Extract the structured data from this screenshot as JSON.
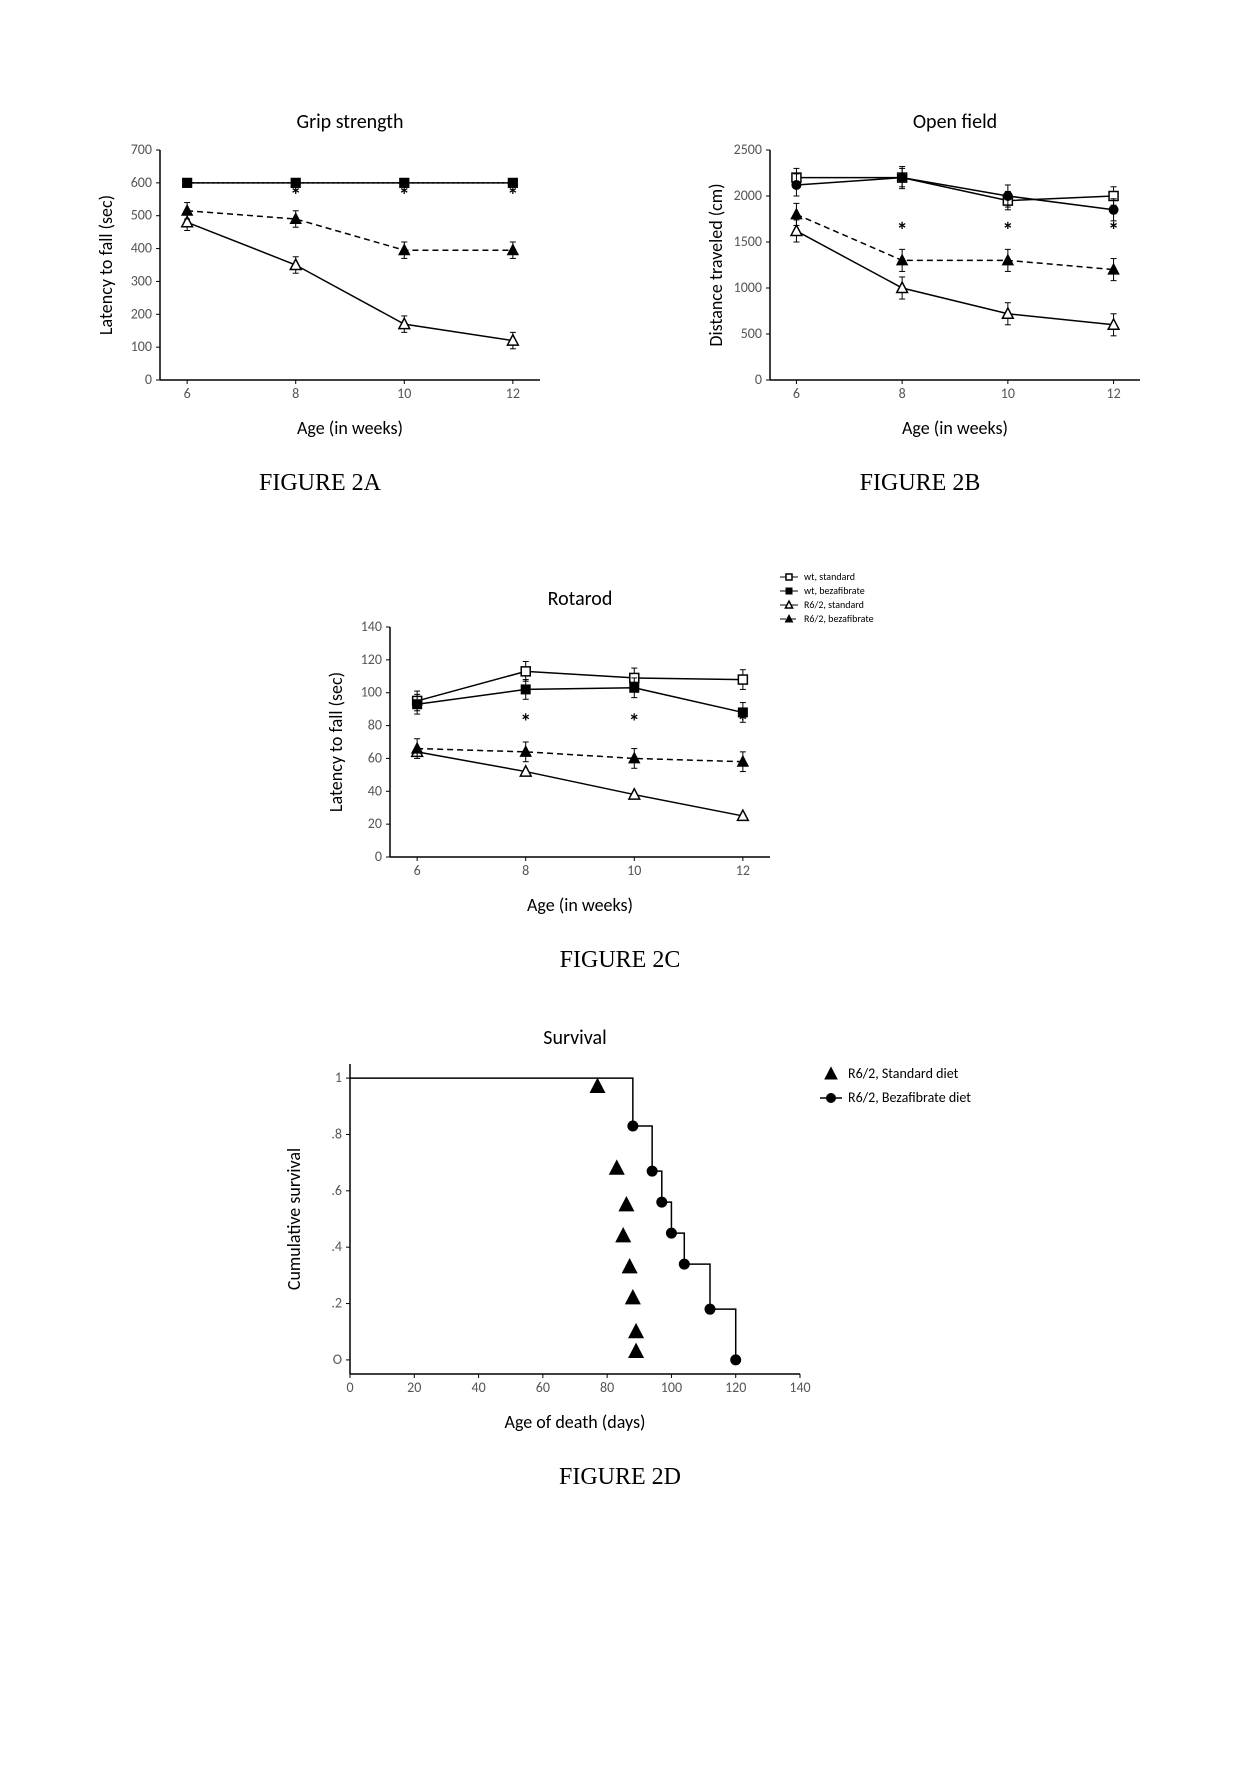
{
  "page": {
    "bg": "#ffffff",
    "captions": {
      "a": "FIGURE 2A",
      "b": "FIGURE 2B",
      "c": "FIGURE 2C",
      "d": "FIGURE 2D"
    }
  },
  "charts": {
    "A": {
      "type": "line",
      "title": "Grip strength",
      "xlabel": "Age (in weeks)",
      "ylabel": "Latency to fall (sec)",
      "xlim": [
        5.5,
        12.5
      ],
      "xticks": [
        6,
        8,
        10,
        12
      ],
      "ylim": [
        0,
        700
      ],
      "yticks": [
        0,
        100,
        200,
        300,
        400,
        500,
        600,
        700
      ],
      "star_y": 540,
      "stars_at": [
        8,
        10,
        12
      ],
      "series": [
        {
          "name": "wt standard",
          "marker": "square-filled",
          "dash": "dotted",
          "color": "#000000",
          "x": [
            6,
            8,
            10,
            12
          ],
          "y": [
            600,
            600,
            600,
            600
          ],
          "err": 0
        },
        {
          "name": "wt bezafibrate",
          "marker": "square-filled",
          "dash": "solid",
          "color": "#000000",
          "x": [
            6,
            8,
            10,
            12
          ],
          "y": [
            600,
            600,
            600,
            600
          ],
          "err": 0
        },
        {
          "name": "R6/2 standard",
          "marker": "triangle-open",
          "dash": "solid",
          "color": "#000000",
          "x": [
            6,
            8,
            10,
            12
          ],
          "y": [
            480,
            350,
            170,
            120
          ],
          "err": 25
        },
        {
          "name": "R6/2 bezafibrate",
          "marker": "triangle-solid",
          "dash": "dashed",
          "color": "#000000",
          "x": [
            6,
            8,
            10,
            12
          ],
          "y": [
            515,
            490,
            395,
            395
          ],
          "err": 25
        }
      ]
    },
    "B": {
      "type": "line",
      "title": "Open field",
      "xlabel": "Age (in weeks)",
      "ylabel": "Distance traveled (cm)",
      "xlim": [
        5.5,
        12.5
      ],
      "xticks": [
        6,
        8,
        10,
        12
      ],
      "ylim": [
        0,
        2500
      ],
      "yticks": [
        0,
        500,
        1000,
        1500,
        2000,
        2500
      ],
      "star_y": 1550,
      "stars_at": [
        8,
        10,
        12
      ],
      "series": [
        {
          "name": "wt standard",
          "marker": "square-open",
          "dash": "solid",
          "color": "#000000",
          "x": [
            6,
            8,
            10,
            12
          ],
          "y": [
            2200,
            2200,
            1950,
            2000
          ],
          "err": 100
        },
        {
          "name": "wt bezafibrate",
          "marker": "circle-filled",
          "dash": "solid",
          "color": "#000000",
          "x": [
            6,
            8,
            10,
            12
          ],
          "y": [
            2120,
            2200,
            2000,
            1850
          ],
          "err": 120
        },
        {
          "name": "R6/2 standard",
          "marker": "triangle-open",
          "dash": "solid",
          "color": "#000000",
          "x": [
            6,
            8,
            10,
            12
          ],
          "y": [
            1620,
            1000,
            720,
            600
          ],
          "err": 120
        },
        {
          "name": "R6/2 bezafibrate",
          "marker": "triangle-solid",
          "dash": "dashed",
          "color": "#000000",
          "x": [
            6,
            8,
            10,
            12
          ],
          "y": [
            1800,
            1300,
            1300,
            1200
          ],
          "err": 120
        }
      ]
    },
    "C": {
      "type": "line",
      "title": "Rotarod",
      "xlabel": "Age (in weeks)",
      "ylabel": "Latency to fall (sec)",
      "xlim": [
        5.5,
        12.5
      ],
      "xticks": [
        6,
        8,
        10,
        12
      ],
      "ylim": [
        0,
        140
      ],
      "yticks": [
        0,
        20,
        40,
        60,
        80,
        100,
        120,
        140
      ],
      "star_y": 78,
      "stars_at": [
        8,
        10,
        12
      ],
      "legend": {
        "items": [
          {
            "label": "wt, standard",
            "marker": "square-open",
            "dash": "solid"
          },
          {
            "label": "wt, bezafibrate",
            "marker": "square-filled",
            "dash": "solid"
          },
          {
            "label": "R6/2, standard",
            "marker": "triangle-open",
            "dash": "solid"
          },
          {
            "label": "R6/2, bezafibrate",
            "marker": "triangle-solid",
            "dash": "dashed"
          }
        ]
      },
      "series": [
        {
          "name": "wt standard",
          "marker": "square-open",
          "dash": "solid",
          "color": "#000000",
          "x": [
            6,
            8,
            10,
            12
          ],
          "y": [
            95,
            113,
            109,
            108
          ],
          "err": 6
        },
        {
          "name": "wt bezafibrate",
          "marker": "square-filled",
          "dash": "solid",
          "color": "#000000",
          "x": [
            6,
            8,
            10,
            12
          ],
          "y": [
            93,
            102,
            103,
            88
          ],
          "err": 6
        },
        {
          "name": "R6/2 standard",
          "marker": "triangle-open",
          "dash": "solid",
          "color": "#000000",
          "x": [
            6,
            8,
            10,
            12
          ],
          "y": [
            64,
            52,
            38,
            25
          ],
          "err": 0
        },
        {
          "name": "R6/2 bezafibrate",
          "marker": "triangle-solid",
          "dash": "dashed",
          "color": "#000000",
          "x": [
            6,
            8,
            10,
            12
          ],
          "y": [
            66,
            64,
            60,
            58
          ],
          "err": 6
        }
      ]
    },
    "D": {
      "type": "survival",
      "title": "Survival",
      "xlabel": "Age of death (days)",
      "ylabel": "Cumulative survival",
      "xlim": [
        0,
        140
      ],
      "xticks": [
        0,
        20,
        40,
        60,
        80,
        100,
        120,
        140
      ],
      "ylim": [
        -0.05,
        1.05
      ],
      "yticks": [
        0,
        0.2,
        0.4,
        0.6,
        0.8,
        1.0
      ],
      "ytick_labels": [
        "O",
        ".2",
        ".4",
        ".6",
        ".8",
        "1"
      ],
      "legend": {
        "items": [
          {
            "label": "R6/2, Standard diet",
            "marker": "triangle-solid",
            "line": false
          },
          {
            "label": "R6/2, Bezafibrate diet",
            "marker": "circle-filled",
            "line": true
          }
        ]
      },
      "scatter": {
        "name": "R6/2 standard",
        "marker": "triangle-solid",
        "color": "#000000",
        "points": [
          [
            77,
            0.97
          ],
          [
            83,
            0.68
          ],
          [
            86,
            0.55
          ],
          [
            85,
            0.44
          ],
          [
            87,
            0.33
          ],
          [
            88,
            0.22
          ],
          [
            89,
            0.1
          ],
          [
            89,
            0.03
          ]
        ]
      },
      "step": {
        "name": "R6/2 bezafibrate",
        "marker": "circle-filled",
        "color": "#000000",
        "breakpoints": [
          [
            0,
            1.0
          ],
          [
            88,
            1.0
          ],
          [
            88,
            0.83
          ],
          [
            94,
            0.83
          ],
          [
            94,
            0.67
          ],
          [
            97,
            0.67
          ],
          [
            97,
            0.56
          ],
          [
            100,
            0.56
          ],
          [
            100,
            0.45
          ],
          [
            104,
            0.45
          ],
          [
            104,
            0.34
          ],
          [
            112,
            0.34
          ],
          [
            112,
            0.18
          ],
          [
            120,
            0.18
          ],
          [
            120,
            0.0
          ]
        ],
        "markers_at": [
          [
            88,
            0.83
          ],
          [
            94,
            0.67
          ],
          [
            97,
            0.56
          ],
          [
            100,
            0.45
          ],
          [
            104,
            0.34
          ],
          [
            112,
            0.18
          ],
          [
            120,
            0.0
          ]
        ]
      }
    }
  }
}
